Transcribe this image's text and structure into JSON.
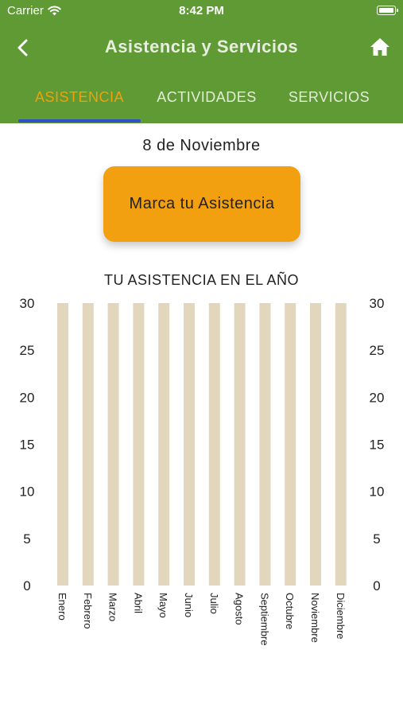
{
  "status_bar": {
    "carrier": "Carrier",
    "time": "8:42 PM"
  },
  "nav": {
    "title": "Asistencia y Servicios"
  },
  "tabs": [
    {
      "label": "ASISTENCIA",
      "active": true
    },
    {
      "label": "ACTIVIDADES",
      "active": false
    },
    {
      "label": "SERVICIOS",
      "active": false
    }
  ],
  "date": "8 de Noviembre",
  "button": {
    "label": "Marca tu Asistencia"
  },
  "colors": {
    "primary": "#5f9a35",
    "accent": "#f2a007",
    "indicator": "#2d52c6",
    "bar": "#e2d6bd"
  },
  "chart_data": {
    "type": "bar",
    "title": "TU ASISTENCIA EN EL AÑO",
    "categories": [
      "Enero",
      "Febrero",
      "Marzo",
      "Abril",
      "Mayo",
      "Junio",
      "Julio",
      "Agosto",
      "Septiembre",
      "Octubre",
      "Noviembre",
      "Diciembre"
    ],
    "values": [
      30,
      30,
      30,
      30,
      30,
      30,
      30,
      30,
      30,
      30,
      30,
      30
    ],
    "ylim": [
      0,
      30
    ],
    "yticks": [
      0,
      5,
      10,
      15,
      20,
      25,
      30
    ],
    "axes": "left-and-right",
    "grid": false
  }
}
